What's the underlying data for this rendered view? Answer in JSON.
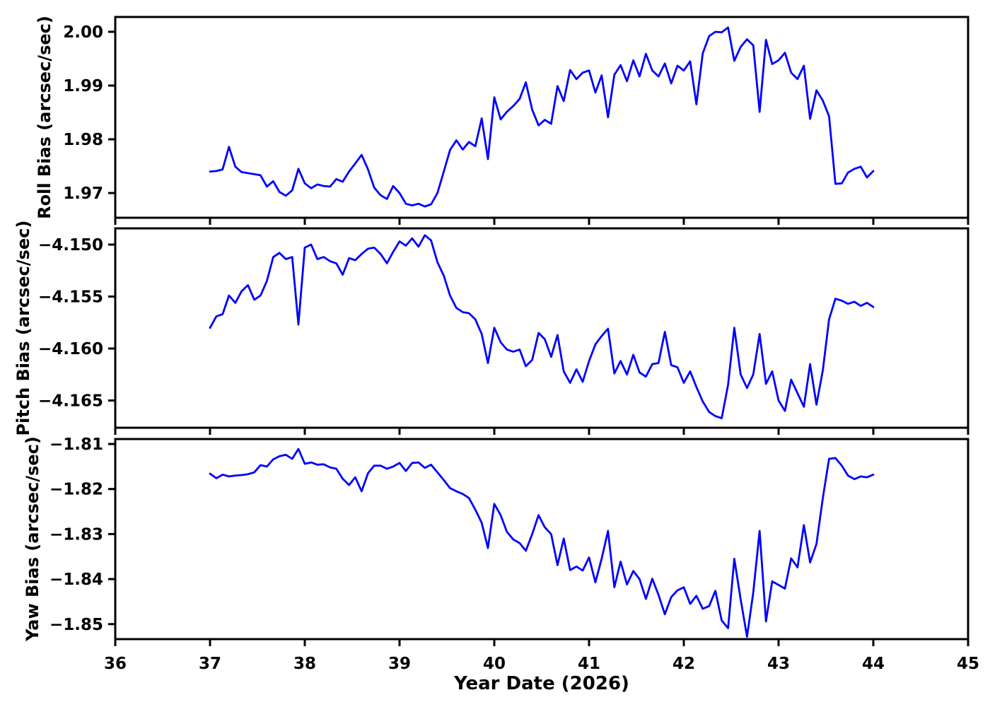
{
  "figure": {
    "background": "#ffffff",
    "axis_color": "#000000",
    "line_color": "#0000ff",
    "xlabel": "Year Date (2026)",
    "x_range": [
      36,
      45
    ],
    "x_ticks": [
      {
        "value": 36,
        "label": "36"
      },
      {
        "value": 37,
        "label": "37"
      },
      {
        "value": 38,
        "label": "38"
      },
      {
        "value": 39,
        "label": "39"
      },
      {
        "value": 40,
        "label": "40"
      },
      {
        "value": 41,
        "label": "41"
      },
      {
        "value": 42,
        "label": "42"
      },
      {
        "value": 43,
        "label": "43"
      },
      {
        "value": 44,
        "label": "44"
      },
      {
        "value": 45,
        "label": "45"
      }
    ]
  },
  "chart_data": [
    {
      "type": "line",
      "ylabel": "Roll Bias (arcsec/sec)",
      "xlabel": "",
      "x_range": [
        36,
        45
      ],
      "ylim": [
        1.9654,
        2.00276
      ],
      "grid": false,
      "legend": "none",
      "y_ticks": [
        {
          "value": 1.97,
          "label": "1.97"
        },
        {
          "value": 1.98,
          "label": "1.98"
        },
        {
          "value": 1.99,
          "label": "1.99"
        },
        {
          "value": 2.0,
          "label": "2.00"
        }
      ],
      "series": [
        {
          "name": "roll-bias",
          "color": "#0000ff",
          "x": [
            37.0,
            37.067,
            37.133,
            37.2,
            37.267,
            37.333,
            37.4,
            37.467,
            37.533,
            37.6,
            37.667,
            37.733,
            37.8,
            37.867,
            37.933,
            38.0,
            38.067,
            38.133,
            38.2,
            38.267,
            38.333,
            38.4,
            38.467,
            38.533,
            38.6,
            38.667,
            38.733,
            38.8,
            38.867,
            38.933,
            39.0,
            39.067,
            39.133,
            39.2,
            39.267,
            39.333,
            39.4,
            39.467,
            39.533,
            39.6,
            39.667,
            39.733,
            39.8,
            39.867,
            39.933,
            40.0,
            40.067,
            40.133,
            40.2,
            40.267,
            40.333,
            40.4,
            40.467,
            40.533,
            40.6,
            40.667,
            40.733,
            40.8,
            40.867,
            40.933,
            41.0,
            41.067,
            41.133,
            41.2,
            41.267,
            41.333,
            41.4,
            41.467,
            41.533,
            41.6,
            41.667,
            41.733,
            41.8,
            41.867,
            41.933,
            42.0,
            42.067,
            42.133,
            42.2,
            42.267,
            42.333,
            42.4,
            42.467,
            42.533,
            42.6,
            42.667,
            42.733,
            42.8,
            42.867,
            42.933,
            43.0,
            43.067,
            43.133,
            43.2,
            43.267,
            43.333,
            43.4,
            43.467,
            43.533,
            43.6,
            43.667,
            43.733,
            43.8,
            43.867,
            43.933,
            44.0
          ],
          "y": [
            1.974,
            1.9741,
            1.9744,
            1.9786,
            1.9749,
            1.9739,
            1.9737,
            1.9735,
            1.9733,
            1.9712,
            1.9722,
            1.9702,
            1.9695,
            1.9705,
            1.9745,
            1.9718,
            1.9709,
            1.9716,
            1.9713,
            1.9712,
            1.9726,
            1.9721,
            1.974,
            1.9755,
            1.9771,
            1.9744,
            1.971,
            1.9696,
            1.9689,
            1.9713,
            1.97,
            1.968,
            1.9677,
            1.968,
            1.9675,
            1.9679,
            1.97,
            1.974,
            1.978,
            1.9798,
            1.9781,
            1.9795,
            1.9787,
            1.9839,
            1.9763,
            1.9878,
            1.9837,
            1.9851,
            1.9862,
            1.9875,
            1.9906,
            1.9855,
            1.9826,
            1.9836,
            1.9829,
            1.9899,
            1.9871,
            1.9929,
            1.9912,
            1.9924,
            1.9928,
            1.9887,
            1.9919,
            1.9841,
            1.992,
            1.9938,
            1.9908,
            1.9947,
            1.9917,
            1.9959,
            1.9928,
            1.9917,
            1.9941,
            1.9904,
            1.9937,
            1.9928,
            1.9945,
            1.9865,
            1.996,
            1.9992,
            2.0,
            1.9999,
            2.0008,
            1.9946,
            1.9972,
            1.9986,
            1.9975,
            1.9851,
            1.9985,
            1.994,
            1.9947,
            1.9961,
            1.9924,
            1.9912,
            1.9937,
            1.9838,
            1.9891,
            1.9872,
            1.9843,
            1.9717,
            1.9718,
            1.9738,
            1.9745,
            1.9749,
            1.9729,
            1.9741
          ]
        }
      ]
    },
    {
      "type": "line",
      "ylabel": "Pitch Bias (arcsec/sec)",
      "xlabel": "",
      "x_range": [
        36,
        45
      ],
      "ylim": [
        -4.16762,
        -4.14844
      ],
      "grid": false,
      "legend": "none",
      "y_ticks": [
        {
          "value": -4.165,
          "label": "−4.165"
        },
        {
          "value": -4.16,
          "label": "−4.160"
        },
        {
          "value": -4.155,
          "label": "−4.155"
        },
        {
          "value": -4.15,
          "label": "−4.150"
        }
      ],
      "series": [
        {
          "name": "pitch-bias",
          "color": "#0000ff",
          "x": [
            37.0,
            37.067,
            37.133,
            37.2,
            37.267,
            37.333,
            37.4,
            37.467,
            37.533,
            37.6,
            37.667,
            37.733,
            37.8,
            37.867,
            37.933,
            38.0,
            38.067,
            38.133,
            38.2,
            38.267,
            38.333,
            38.4,
            38.467,
            38.533,
            38.6,
            38.667,
            38.733,
            38.8,
            38.867,
            38.933,
            39.0,
            39.067,
            39.133,
            39.2,
            39.267,
            39.333,
            39.4,
            39.467,
            39.533,
            39.6,
            39.667,
            39.733,
            39.8,
            39.867,
            39.933,
            40.0,
            40.067,
            40.133,
            40.2,
            40.267,
            40.333,
            40.4,
            40.467,
            40.533,
            40.6,
            40.667,
            40.733,
            40.8,
            40.867,
            40.933,
            41.0,
            41.067,
            41.133,
            41.2,
            41.267,
            41.333,
            41.4,
            41.467,
            41.533,
            41.6,
            41.667,
            41.733,
            41.8,
            41.867,
            41.933,
            42.0,
            42.067,
            42.133,
            42.2,
            42.267,
            42.333,
            42.4,
            42.467,
            42.533,
            42.6,
            42.667,
            42.733,
            42.8,
            42.867,
            42.933,
            43.0,
            43.067,
            43.133,
            43.2,
            43.267,
            43.333,
            43.4,
            43.467,
            43.533,
            43.6,
            43.667,
            43.733,
            43.8,
            43.867,
            43.933,
            44.0
          ],
          "y": [
            -4.158,
            -4.1569,
            -4.1567,
            -4.1549,
            -4.1556,
            -4.1545,
            -4.1539,
            -4.1553,
            -4.1549,
            -4.1535,
            -4.1512,
            -4.1508,
            -4.1514,
            -4.1512,
            -4.1577,
            -4.1503,
            -4.15,
            -4.1514,
            -4.1512,
            -4.1516,
            -4.1518,
            -4.1529,
            -4.1513,
            -4.1515,
            -4.1509,
            -4.1504,
            -4.1503,
            -4.1509,
            -4.1518,
            -4.1507,
            -4.1497,
            -4.1501,
            -4.1494,
            -4.1502,
            -4.1491,
            -4.1496,
            -4.1517,
            -4.153,
            -4.1549,
            -4.1561,
            -4.1565,
            -4.1566,
            -4.1572,
            -4.1586,
            -4.1614,
            -4.158,
            -4.1594,
            -4.1601,
            -4.1603,
            -4.1601,
            -4.1617,
            -4.1611,
            -4.1585,
            -4.1591,
            -4.1608,
            -4.1587,
            -4.1622,
            -4.1633,
            -4.162,
            -4.1632,
            -4.1612,
            -4.1596,
            -4.1588,
            -4.1581,
            -4.1624,
            -4.1612,
            -4.1625,
            -4.1606,
            -4.1623,
            -4.1627,
            -4.1615,
            -4.1614,
            -4.1584,
            -4.1616,
            -4.1618,
            -4.1633,
            -4.1622,
            -4.1637,
            -4.1651,
            -4.1661,
            -4.1665,
            -4.1667,
            -4.1635,
            -4.158,
            -4.1625,
            -4.1638,
            -4.1625,
            -4.1586,
            -4.1634,
            -4.1622,
            -4.165,
            -4.166,
            -4.163,
            -4.1643,
            -4.1656,
            -4.1615,
            -4.1654,
            -4.1621,
            -4.1572,
            -4.1552,
            -4.1554,
            -4.1557,
            -4.1555,
            -4.1559,
            -4.1556,
            -4.156
          ]
        }
      ]
    },
    {
      "type": "line",
      "ylabel": "Yaw Bias (arcsec/sec)",
      "xlabel": "Year Date (2026)",
      "x_range": [
        36,
        45
      ],
      "ylim": [
        -1.85333,
        -1.8089
      ],
      "grid": false,
      "legend": "none",
      "y_ticks": [
        {
          "value": -1.85,
          "label": "−1.85"
        },
        {
          "value": -1.84,
          "label": "−1.84"
        },
        {
          "value": -1.83,
          "label": "−1.83"
        },
        {
          "value": -1.82,
          "label": "−1.82"
        },
        {
          "value": -1.81,
          "label": "−1.81"
        }
      ],
      "series": [
        {
          "name": "yaw-bias",
          "color": "#0000ff",
          "x": [
            37.0,
            37.067,
            37.133,
            37.2,
            37.267,
            37.333,
            37.4,
            37.467,
            37.533,
            37.6,
            37.667,
            37.733,
            37.8,
            37.867,
            37.933,
            38.0,
            38.067,
            38.133,
            38.2,
            38.267,
            38.333,
            38.4,
            38.467,
            38.533,
            38.6,
            38.667,
            38.733,
            38.8,
            38.867,
            38.933,
            39.0,
            39.067,
            39.133,
            39.2,
            39.267,
            39.333,
            39.4,
            39.467,
            39.533,
            39.6,
            39.667,
            39.733,
            39.8,
            39.867,
            39.933,
            40.0,
            40.067,
            40.133,
            40.2,
            40.267,
            40.333,
            40.4,
            40.467,
            40.533,
            40.6,
            40.667,
            40.733,
            40.8,
            40.867,
            40.933,
            41.0,
            41.067,
            41.133,
            41.2,
            41.267,
            41.333,
            41.4,
            41.467,
            41.533,
            41.6,
            41.667,
            41.733,
            41.8,
            41.867,
            41.933,
            42.0,
            42.067,
            42.133,
            42.2,
            42.267,
            42.333,
            42.4,
            42.467,
            42.533,
            42.6,
            42.667,
            42.733,
            42.8,
            42.867,
            42.933,
            43.0,
            43.067,
            43.133,
            43.2,
            43.267,
            43.333,
            43.4,
            43.467,
            43.533,
            43.6,
            43.667,
            43.733,
            43.8,
            43.867,
            43.933,
            44.0
          ],
          "y": [
            -1.8166,
            -1.8176,
            -1.8168,
            -1.8172,
            -1.817,
            -1.8169,
            -1.8167,
            -1.8163,
            -1.8147,
            -1.815,
            -1.8134,
            -1.8127,
            -1.8124,
            -1.8133,
            -1.8111,
            -1.8144,
            -1.8141,
            -1.8146,
            -1.8145,
            -1.8152,
            -1.8155,
            -1.8177,
            -1.8191,
            -1.8174,
            -1.8205,
            -1.8165,
            -1.8148,
            -1.8148,
            -1.8155,
            -1.815,
            -1.8142,
            -1.816,
            -1.8142,
            -1.8141,
            -1.8153,
            -1.8146,
            -1.8163,
            -1.818,
            -1.8198,
            -1.8205,
            -1.8211,
            -1.822,
            -1.8246,
            -1.8275,
            -1.8331,
            -1.8233,
            -1.8258,
            -1.8295,
            -1.8312,
            -1.832,
            -1.8337,
            -1.83,
            -1.8258,
            -1.8285,
            -1.83,
            -1.8369,
            -1.831,
            -1.838,
            -1.8372,
            -1.8381,
            -1.8352,
            -1.8407,
            -1.8355,
            -1.8293,
            -1.8418,
            -1.8361,
            -1.8412,
            -1.8382,
            -1.84,
            -1.8444,
            -1.8399,
            -1.8435,
            -1.8478,
            -1.844,
            -1.8425,
            -1.8418,
            -1.8455,
            -1.8437,
            -1.8466,
            -1.846,
            -1.8426,
            -1.8492,
            -1.8509,
            -1.8355,
            -1.8445,
            -1.8528,
            -1.843,
            -1.8293,
            -1.8494,
            -1.8405,
            -1.8413,
            -1.8421,
            -1.8354,
            -1.8374,
            -1.828,
            -1.8363,
            -1.8322,
            -1.822,
            -1.8133,
            -1.8131,
            -1.8148,
            -1.817,
            -1.8178,
            -1.8172,
            -1.8174,
            -1.8168
          ]
        }
      ]
    }
  ]
}
